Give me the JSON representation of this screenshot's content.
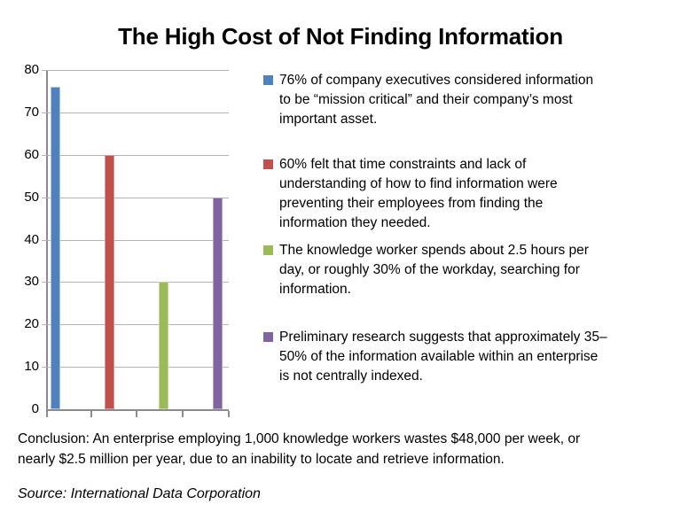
{
  "title": "The High Cost of Not Finding Information",
  "chart_data": {
    "type": "bar",
    "title": "The High Cost of Not Finding Information",
    "ylabel": "",
    "xlabel": "",
    "ylim": [
      0,
      80
    ],
    "ytick_step": 10,
    "yticks": [
      "80",
      "70",
      "60",
      "50",
      "40",
      "30",
      "20",
      "10",
      "0"
    ],
    "grid": true,
    "legend_position": "right",
    "series": [
      {
        "value": 76,
        "color": "#4f81bd",
        "border_color": "#a7c4e2",
        "label": "76% of company executives considered information\nto be “mission critical” and their company’s most\nimportant asset."
      },
      {
        "value": 60,
        "color": "#c0504d",
        "border_color": "#d99694",
        "label": "60% felt that time constraints and lack of\nunderstanding of how to find information were\npreventing their employees from finding the\ninformation they needed."
      },
      {
        "value": 30,
        "color": "#9bbb59",
        "border_color": "#c3d69b",
        "label": "The knowledge worker spends about 2.5 hours per\nday, or roughly 30% of the workday, searching for\ninformation."
      },
      {
        "value": 50,
        "color": "#8064a2",
        "border_color": "#b3a2c7",
        "label": "Preliminary research suggests that approximately 35–\n50% of the information available within an enterprise\nis not centrally indexed."
      }
    ]
  },
  "conclusion": "Conclusion: An enterprise employing 1,000 knowledge workers wastes $48,000 per week, or\nnearly $2.5 million per year, due to an inability to locate and retrieve information.",
  "source": "Source: International Data Corporation",
  "axis_color": "#8c8c8c",
  "gridline_color": "#b3b3b3"
}
